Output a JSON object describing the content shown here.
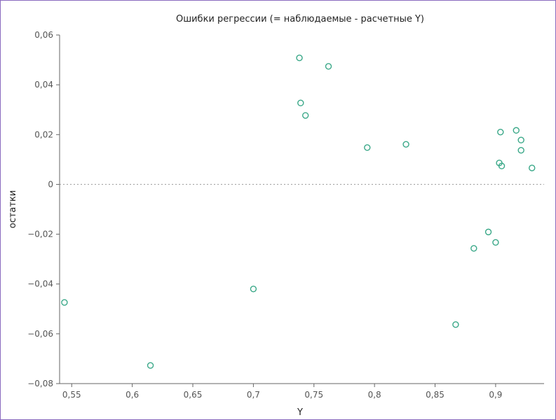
{
  "chart_data": {
    "type": "scatter",
    "title": "Ошибки регрессии (= наблюдаемые - расчетные Y)",
    "xlabel": "Y",
    "ylabel": "остатки",
    "xlim": [
      0.54,
      0.94
    ],
    "ylim": [
      -0.08,
      0.06
    ],
    "x_ticks": [
      0.55,
      0.6,
      0.65,
      0.7,
      0.75,
      0.8,
      0.85,
      0.9
    ],
    "x_tick_labels": [
      "0,55",
      "0,6",
      "0,65",
      "0,7",
      "0,75",
      "0,8",
      "0,85",
      "0,9"
    ],
    "y_ticks": [
      -0.08,
      -0.06,
      -0.04,
      -0.02,
      0,
      0.02,
      0.04,
      0.06
    ],
    "y_tick_labels": [
      "−0,08",
      "−0,06",
      "−0,04",
      "−0,02",
      "0",
      "0,02",
      "0,04",
      "0,06"
    ],
    "zero_line": true,
    "grid": false,
    "marker": "open-circle",
    "point_color": "#3aa888",
    "points": [
      {
        "x": 0.544,
        "y": -0.0474
      },
      {
        "x": 0.615,
        "y": -0.0727
      },
      {
        "x": 0.7,
        "y": -0.042
      },
      {
        "x": 0.738,
        "y": 0.0508
      },
      {
        "x": 0.739,
        "y": 0.0327
      },
      {
        "x": 0.743,
        "y": 0.0277
      },
      {
        "x": 0.762,
        "y": 0.0474
      },
      {
        "x": 0.794,
        "y": 0.0148
      },
      {
        "x": 0.826,
        "y": 0.0161
      },
      {
        "x": 0.867,
        "y": -0.0563
      },
      {
        "x": 0.882,
        "y": -0.0257
      },
      {
        "x": 0.894,
        "y": -0.0191
      },
      {
        "x": 0.9,
        "y": -0.0233
      },
      {
        "x": 0.903,
        "y": 0.0086
      },
      {
        "x": 0.904,
        "y": 0.021
      },
      {
        "x": 0.905,
        "y": 0.0074
      },
      {
        "x": 0.917,
        "y": 0.0217
      },
      {
        "x": 0.921,
        "y": 0.0178
      },
      {
        "x": 0.921,
        "y": 0.0137
      },
      {
        "x": 0.93,
        "y": 0.0066
      }
    ]
  }
}
